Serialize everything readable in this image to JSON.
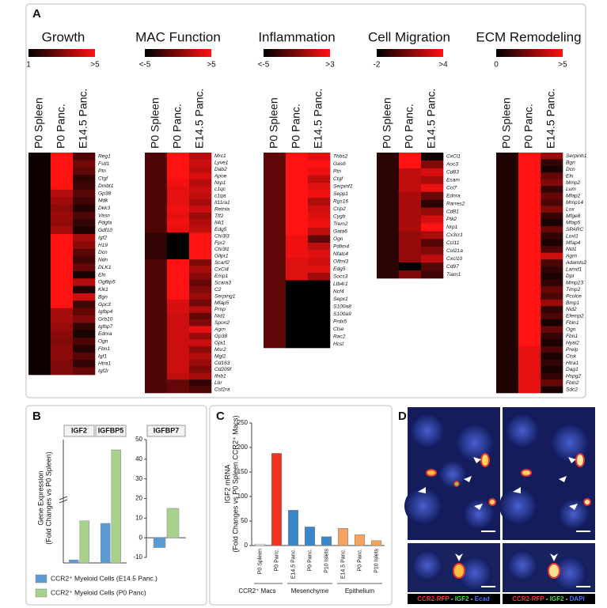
{
  "panel_labels": [
    "A",
    "B",
    "C",
    "D"
  ],
  "chart_data": [
    {
      "type": "heatmap",
      "title": "Growth",
      "columns": [
        "P0 Spleen",
        "P0 Panc.",
        "E14.5 Panc."
      ],
      "scale": [
        {
          "value": 1,
          "label": "1"
        },
        {
          "value": 5,
          "label": ">5"
        }
      ],
      "rows": [
        "Reg1",
        "Fstl1",
        "Ptn",
        "Ctgf",
        "Dmbt1",
        "Gp38",
        "Mdk",
        "Dkk3",
        "Vasn",
        "Pdgfa",
        "Gdf10",
        "Igf2",
        "H19",
        "Dcn",
        "Ndn",
        "DLK1",
        "Eln",
        "Ogfbp5",
        "Klk1",
        "Bgn",
        "Gpc3",
        "Igfbp4",
        "Grb10",
        "Igfbp7",
        "Ednra",
        "Ogn",
        "Fbn1",
        "Igf1",
        "Htra1",
        "Igf2r"
      ],
      "values": [
        [
          1.2,
          5,
          2.2
        ],
        [
          1.2,
          5,
          2.8
        ],
        [
          1.2,
          5,
          2.5
        ],
        [
          1.2,
          5,
          1.8
        ],
        [
          1.2,
          5,
          2
        ],
        [
          1.2,
          3.8,
          2.4
        ],
        [
          1.2,
          3.5,
          2
        ],
        [
          1.2,
          3.2,
          1.6
        ],
        [
          1.2,
          3.4,
          2.2
        ],
        [
          1.2,
          3.3,
          1.8
        ],
        [
          1.2,
          3.6,
          1.5
        ],
        [
          1.2,
          5,
          3.6
        ],
        [
          1.2,
          5,
          3.2
        ],
        [
          1.2,
          5,
          2.4
        ],
        [
          1.2,
          5,
          2
        ],
        [
          1.2,
          5,
          2.6
        ],
        [
          1.2,
          5,
          1.4
        ],
        [
          1.2,
          5,
          3.8
        ],
        [
          1.2,
          5,
          1.5
        ],
        [
          1.2,
          5,
          4.2
        ],
        [
          1.2,
          5,
          2
        ],
        [
          1.2,
          3.6,
          2.6
        ],
        [
          1.2,
          3.6,
          3
        ],
        [
          1.2,
          3.4,
          1.8
        ],
        [
          1.2,
          3.2,
          1.4
        ],
        [
          1.2,
          3,
          2.2
        ],
        [
          1.2,
          3.2,
          1.6
        ],
        [
          1.2,
          3.2,
          2.4
        ],
        [
          1.2,
          3,
          1.8
        ],
        [
          1.2,
          3,
          2.6
        ]
      ]
    },
    {
      "type": "heatmap",
      "title": "MAC Function",
      "columns": [
        "P0 Spleen",
        "P0 Panc.",
        "E14.5 Panc."
      ],
      "scale": [
        {
          "value": -5,
          "label": "<-5"
        },
        {
          "value": 5,
          "label": ">5"
        }
      ],
      "rows": [
        "Mrc1",
        "Lyve1",
        "Dab2",
        "Apoe",
        "Nrp1",
        "c1qc",
        "c1qa",
        "Il11ra1",
        "Retnla",
        "Tff2",
        "Il4i1",
        "Edg5",
        "Chi3l3",
        "Fpr2",
        "Chi3l1",
        "Glipr1",
        "Scarf2",
        "CxCl4",
        "Emp1",
        "Scara3",
        "C2",
        "Serping1",
        "Mfap5",
        "Prnp",
        "Nid1",
        "Spon2",
        "Agrn",
        "Gp38",
        "Gja1",
        "Msr2",
        "Mgl2",
        "Cd163",
        "Cd209f",
        "Ifnb1",
        "Lbr",
        "Csf2ra"
      ],
      "values": [
        [
          -2,
          5,
          2
        ],
        [
          -2,
          5,
          3
        ],
        [
          -2,
          5,
          2.5
        ],
        [
          -2,
          5,
          3.5
        ],
        [
          -2,
          4.5,
          2
        ],
        [
          -2,
          4,
          3
        ],
        [
          -2,
          4,
          2.5
        ],
        [
          -2,
          4,
          1.5
        ],
        [
          -2,
          4.5,
          3
        ],
        [
          -2,
          4,
          1
        ],
        [
          -2,
          4.5,
          2
        ],
        [
          -2,
          4,
          2.5
        ],
        [
          -3,
          -5,
          5
        ],
        [
          -3,
          -5,
          5
        ],
        [
          -3,
          -5,
          5
        ],
        [
          -3,
          -5,
          5
        ],
        [
          -2,
          5,
          0
        ],
        [
          -2,
          5,
          1.5
        ],
        [
          -2,
          5,
          0.5
        ],
        [
          -2,
          5,
          -1
        ],
        [
          -2,
          5,
          0
        ],
        [
          -2,
          5,
          1
        ],
        [
          -2,
          3.5,
          -0.5
        ],
        [
          -2,
          3.5,
          2
        ],
        [
          -2,
          3,
          -1
        ],
        [
          -2,
          3,
          0
        ],
        [
          -2,
          3,
          4
        ],
        [
          -2,
          3,
          1
        ],
        [
          -2,
          3,
          3
        ],
        [
          -2,
          3,
          0.5
        ],
        [
          -2,
          3,
          2
        ],
        [
          -2,
          3,
          1
        ],
        [
          -2,
          3,
          0
        ],
        [
          -2,
          2.5,
          1.5
        ],
        [
          -2,
          -1,
          -3
        ],
        [
          -2,
          -1,
          -2
        ]
      ]
    },
    {
      "type": "heatmap",
      "title": "Inflammation",
      "columns": [
        "P0 Spleen",
        "P0 Panc.",
        "E14.5 Panc."
      ],
      "scale": [
        {
          "value": -5,
          "label": "<-5"
        },
        {
          "value": 3,
          "label": ">3"
        }
      ],
      "rows": [
        "Thbs2",
        "Gas6",
        "Ptn",
        "Ctgf",
        "Serpinf1",
        "Sepp1",
        "Rgs16",
        "Crip2",
        "Cygb",
        "Trem2",
        "Gata6",
        "Ogn",
        "Pdlim4",
        "Nfatc4",
        "Olfml3",
        "Edg5",
        "Socs3",
        "Ltb4r1",
        "Ncf4",
        "Sepx1",
        "S100a8",
        "S100a9",
        "Prdx5",
        "Ctse",
        "Rac2",
        "Hcst"
      ],
      "values": [
        [
          -2,
          3,
          2
        ],
        [
          -2,
          3,
          3
        ],
        [
          -2,
          3,
          2.5
        ],
        [
          -2,
          3,
          1
        ],
        [
          -2,
          3,
          2
        ],
        [
          -2,
          3,
          2.5
        ],
        [
          -2,
          3,
          0.5
        ],
        [
          -2,
          3,
          1.5
        ],
        [
          -2,
          3,
          2
        ],
        [
          -2,
          3,
          2.5
        ],
        [
          -2,
          3,
          1
        ],
        [
          -2,
          2.5,
          -2
        ],
        [
          -2,
          2.5,
          1
        ],
        [
          -2,
          2.5,
          2
        ],
        [
          -2,
          2,
          1.5
        ],
        [
          -2,
          2,
          2
        ],
        [
          -2,
          2,
          0
        ],
        [
          -2,
          -5,
          -5
        ],
        [
          -2,
          -5,
          -5
        ],
        [
          -2,
          -5,
          -5
        ],
        [
          -2,
          -5,
          -5
        ],
        [
          -2,
          -5,
          -5
        ],
        [
          -2,
          -5,
          -5
        ],
        [
          -2,
          -5,
          -5
        ],
        [
          -2,
          -5,
          -5
        ],
        [
          -2,
          -5,
          -5
        ]
      ]
    },
    {
      "type": "heatmap",
      "title": "Cell Migration",
      "columns": [
        "P0 Spleen",
        "P0 Panc.",
        "E14.5 Panc."
      ],
      "scale": [
        {
          "value": -2,
          "label": "-2"
        },
        {
          "value": 4,
          "label": ">4"
        }
      ],
      "rows": [
        "CxCl1",
        "Aoc3",
        "Cd83",
        "Esam",
        "Ccl7",
        "Ednra",
        "Rarres2",
        "Cd81",
        "Ptk2",
        "Nrp1",
        "Cx3cr1",
        "Ccl11",
        "Col21a",
        "Cxcl10",
        "Cd97",
        "Tiam1"
      ],
      "values": [
        [
          -1,
          4,
          -1.5
        ],
        [
          -1,
          4,
          1
        ],
        [
          -1,
          2.5,
          3
        ],
        [
          -1,
          2.5,
          2
        ],
        [
          -1,
          2.5,
          3.5
        ],
        [
          -1,
          2,
          0.5
        ],
        [
          -1,
          2,
          -1
        ],
        [
          -1,
          2,
          1.5
        ],
        [
          -1,
          2,
          3
        ],
        [
          -1,
          2,
          4
        ],
        [
          -1,
          1.5,
          2
        ],
        [
          -1,
          1.5,
          0
        ],
        [
          -1,
          1.5,
          1
        ],
        [
          -1,
          1.5,
          2.5
        ],
        [
          -1,
          -2,
          0
        ],
        [
          -1,
          1,
          -0.5
        ]
      ]
    },
    {
      "type": "heatmap",
      "title": "ECM Remodeling",
      "columns": [
        "P0 Spleen",
        "P0 Panc.",
        "E14.5 Panc."
      ],
      "scale": [
        {
          "value": 0,
          "label": "0"
        },
        {
          "value": 5,
          "label": ">5"
        }
      ],
      "rows": [
        "Serpinh1",
        "Bgn",
        "Dcn",
        "Eln",
        "Mmp2",
        "Lum",
        "Mfap2",
        "Mmp14",
        "Lox",
        "Mfge8",
        "Mfap5",
        "SPARC",
        "Loxl1",
        "Mfap4",
        "Nid1",
        "Agrn",
        "Adamts2",
        "Lamd1",
        "Dpt",
        "Mmp23",
        "Timp2",
        "Pcolce",
        "Bmp1",
        "Nid2",
        "Efemp2",
        "Fbln1",
        "Ogn",
        "Fbn1",
        "Hyal2",
        "Prelp",
        "Ctsk",
        "Htra1",
        "Dag1",
        "Hspg2",
        "Fbln2",
        "Sdc2"
      ],
      "values": [
        [
          0.6,
          5,
          3
        ],
        [
          0.6,
          5,
          1
        ],
        [
          0.6,
          5,
          0.5
        ],
        [
          0.6,
          5,
          2
        ],
        [
          0.6,
          5,
          2.5
        ],
        [
          0.6,
          5,
          1
        ],
        [
          0.6,
          5,
          2
        ],
        [
          0.6,
          5,
          1.5
        ],
        [
          0.6,
          5,
          2.5
        ],
        [
          0.6,
          5,
          1
        ],
        [
          0.6,
          5,
          0.5
        ],
        [
          0.6,
          5,
          2
        ],
        [
          0.6,
          5,
          1
        ],
        [
          0.6,
          5,
          0.5
        ],
        [
          0.6,
          5,
          1.5
        ],
        [
          0.6,
          5,
          4
        ],
        [
          0.6,
          5,
          1.5
        ],
        [
          0.6,
          5,
          1
        ],
        [
          0.6,
          5,
          0.5
        ],
        [
          0.6,
          5,
          1
        ],
        [
          0.6,
          5,
          2
        ],
        [
          0.6,
          5,
          1.5
        ],
        [
          0.6,
          5,
          3
        ],
        [
          0.6,
          5,
          1
        ],
        [
          0.6,
          5,
          1.5
        ],
        [
          0.6,
          5,
          0.5
        ],
        [
          0.6,
          5,
          2
        ],
        [
          0.6,
          5,
          1
        ],
        [
          0.6,
          5,
          0.5
        ],
        [
          0.6,
          4.5,
          1.5
        ],
        [
          0.6,
          4.5,
          0.5
        ],
        [
          0.6,
          4.5,
          1
        ],
        [
          0.6,
          4.5,
          0.5
        ],
        [
          0.6,
          4.5,
          1
        ],
        [
          0.6,
          4.5,
          2
        ],
        [
          0.6,
          4.5,
          0.5
        ]
      ]
    },
    {
      "type": "bar",
      "categories": [
        "IGF2",
        "IGFBP5"
      ],
      "ylabel": [
        "Gene Expression",
        "(Fold Changes vs P0 Spleen)"
      ],
      "ylim": [
        0,
        1200
      ],
      "series": [
        {
          "name": "CCR2⁺ Myeloid Cells (E14.5 Panc.)",
          "color": "#5b9bd5",
          "values": [
            30,
            385
          ]
        },
        {
          "name": "CCR2⁺ Myeloid Cells (P0 Panc)",
          "color": "#a9d18e",
          "values": [
            410,
            1100
          ]
        }
      ]
    },
    {
      "type": "bar",
      "categories": [
        "IGFBP7"
      ],
      "ylim": [
        -10,
        50
      ],
      "yticks": [
        -10,
        0,
        10,
        20,
        30,
        40,
        50
      ],
      "series": [
        {
          "color": "#5b9bd5",
          "values": [
            -5
          ]
        },
        {
          "color": "#a9d18e",
          "values": [
            15
          ]
        }
      ]
    },
    {
      "type": "bar",
      "categories": [
        "P0 Spleen",
        "P0 Panc.",
        "E14.5 Panc.",
        "P0 Panc.",
        "P10 Islets",
        "E14.5 Panc.",
        "P0 Panc.",
        "P10 Islets"
      ],
      "values": [
        3,
        188,
        72,
        38,
        18,
        35,
        22,
        10
      ],
      "colors": [
        "#ffffff",
        "#ee3322",
        "#3b86c8",
        "#3b86c8",
        "#3b86c8",
        "#f4a460",
        "#f4a460",
        "#f4a460"
      ],
      "groups": [
        "CCR2⁺ Macs",
        "Mesenchyme",
        "Epithelium"
      ],
      "ylabel": [
        "IGF2 mRNA",
        "(Fold Changes vs P0 Spleen CCR2⁺ Macs)"
      ],
      "ylim": [
        0,
        250
      ],
      "yticks": [
        0,
        50,
        100,
        150,
        200,
        250
      ]
    }
  ],
  "microscopy": {
    "captions": [
      [
        "CCR2-RFP",
        " - ",
        "IGF2",
        " - ",
        "Ecad"
      ],
      [
        "CCR2-RFP",
        " - ",
        "IGF2",
        " - ",
        "DAPI"
      ]
    ]
  }
}
